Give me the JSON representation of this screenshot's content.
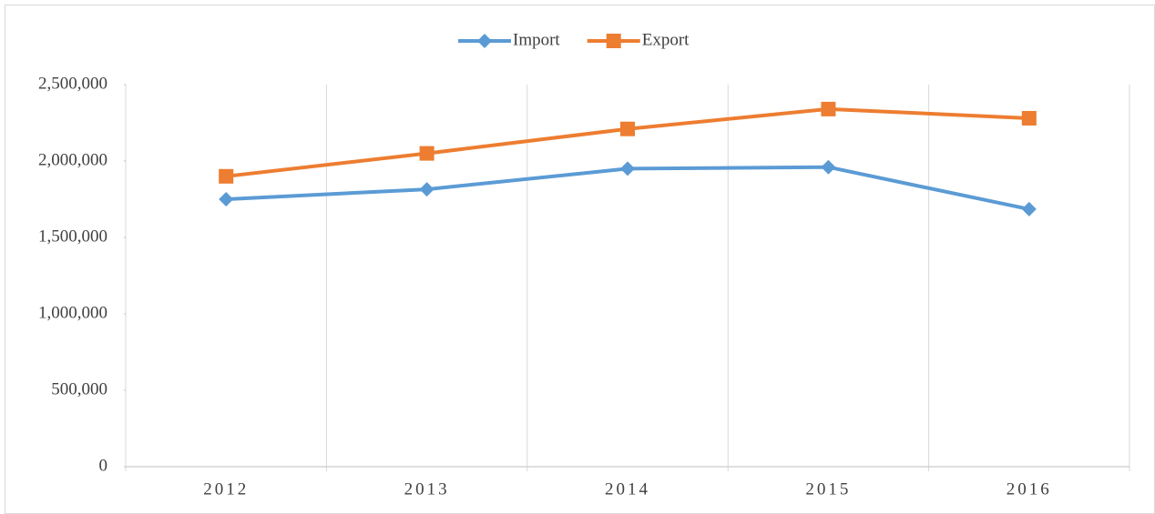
{
  "chart_data": {
    "type": "line",
    "categories": [
      "2012",
      "2013",
      "2014",
      "2015",
      "2016"
    ],
    "series": [
      {
        "name": "Import",
        "color": "#5b9bd5",
        "marker": "diamond",
        "values": [
          1750000,
          1815000,
          1950000,
          1960000,
          1685000
        ]
      },
      {
        "name": "Export",
        "color": "#ed7d31",
        "marker": "square",
        "values": [
          1900000,
          2050000,
          2210000,
          2340000,
          2280000
        ]
      }
    ],
    "ylim": [
      0,
      2500000
    ],
    "yticks": [
      0,
      {
        "value": 500000,
        "label": "500,000"
      },
      {
        "value": 1000000,
        "label": "1,000,000"
      },
      {
        "value": 1500000,
        "label": "1,500,000"
      },
      {
        "value": 2000000,
        "label": "2,000,000"
      },
      {
        "value": 2500000,
        "label": "2,500,000"
      }
    ],
    "legend": "top"
  }
}
